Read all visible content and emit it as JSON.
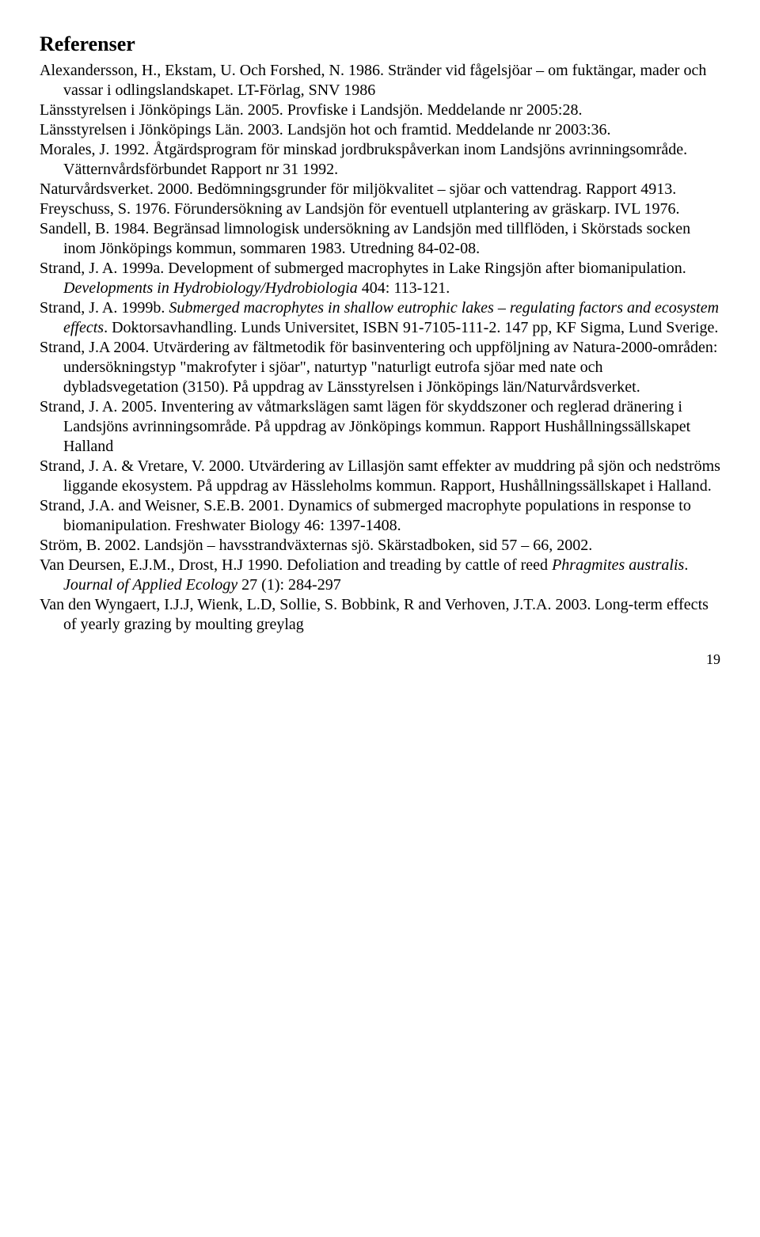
{
  "heading": "Referenser",
  "pageNumber": "19",
  "refs": [
    {
      "pre": "Alexandersson, H., Ekstam, U. Och Forshed, N. 1986. Stränder vid fågelsjöar – om fuktängar, mader och vassar i odlingslandskapet. LT-Förlag, SNV 1986",
      "post": ""
    },
    {
      "pre": "Länsstyrelsen i Jönköpings Län. 2005. Provfiske i Landsjön. Meddelande nr 2005:28.",
      "post": ""
    },
    {
      "pre": "Länsstyrelsen i Jönköpings Län. 2003. Landsjön hot och framtid. Meddelande nr 2003:36.",
      "post": ""
    },
    {
      "pre": "Morales, J. 1992. Åtgärdsprogram för minskad jordbrukspåverkan inom Landsjöns avrinningsområde. Vätternvårdsförbundet Rapport nr 31 1992.",
      "post": ""
    },
    {
      "pre": "Naturvårdsverket. 2000. Bedömningsgrunder för miljökvalitet – sjöar och vattendrag. Rapport 4913.",
      "post": ""
    },
    {
      "pre": "Freyschuss, S. 1976. Förundersökning av Landsjön för eventuell utplantering av gräskarp. IVL 1976.",
      "post": ""
    },
    {
      "pre": "Sandell, B. 1984. Begränsad limnologisk undersökning av Landsjön med tillflöden, i Skörstads socken inom Jönköpings kommun, sommaren 1983. Utredning 84-02-08.",
      "post": ""
    },
    {
      "pre": "Strand, J. A. 1999a. Development of submerged macrophytes in Lake Ringsjön after biomanipulation. ",
      "ital": "Developments in Hydrobiology/Hydrobiologia",
      "post": " 404: 113-121."
    },
    {
      "pre": "Strand, J. A. 1999b. ",
      "ital": "Submerged macrophytes in shallow eutrophic lakes – regulating factors and ecosystem effects",
      "post": ". Doktorsavhandling. Lunds Universitet, ISBN 91-7105-111-2. 147 pp, KF Sigma, Lund Sverige."
    },
    {
      "pre": "Strand, J.A 2004. Utvärdering av fältmetodik för basinventering och uppföljning av Natura-2000-områden: undersökningstyp \"makrofyter i sjöar\", naturtyp \"naturligt eutrofa sjöar med nate och dybladsvegetation (3150). På uppdrag av Länsstyrelsen i Jönköpings län/Naturvårdsverket.",
      "post": ""
    },
    {
      "pre": "Strand, J. A. 2005. Inventering av våtmarkslägen samt lägen för skyddszoner och reglerad dränering i Landsjöns avrinningsområde. På uppdrag av Jönköpings kommun. Rapport Hushållningssällskapet Halland",
      "post": ""
    },
    {
      "pre": "Strand, J. A. & Vretare, V. 2000. Utvärdering av Lillasjön samt effekter av muddring på sjön och nedströms liggande ekosystem. På uppdrag av Hässleholms kommun. Rapport, Hushållningssällskapet i Halland.",
      "post": ""
    },
    {
      "pre": "Strand, J.A. and Weisner, S.E.B. 2001. Dynamics of submerged macrophyte populations in response to biomanipulation. Freshwater Biology 46: 1397-1408.",
      "post": ""
    },
    {
      "pre": "Ström, B. 2002. Landsjön – havsstrandväxternas sjö. Skärstadboken, sid 57 – 66, 2002.",
      "post": ""
    },
    {
      "pre": "Van Deursen, E.J.M., Drost, H.J 1990. Defoliation and treading by cattle of reed ",
      "ital": "Phragmites australis",
      "post": ". ",
      "ital2": "Journal of Applied Ecology",
      "post2": " 27 (1): 284-297"
    },
    {
      "pre": "Van den Wyngaert, I.J.J, Wienk, L.D, Sollie, S. Bobbink, R and Verhoven, J.T.A. 2003. Long-term effects of yearly grazing by moulting greylag",
      "post": ""
    }
  ]
}
